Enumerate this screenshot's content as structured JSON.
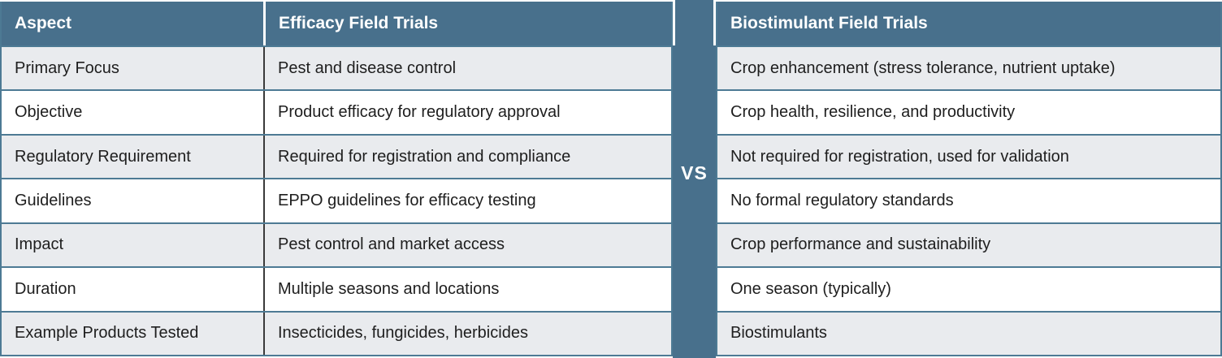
{
  "chart_data": {
    "type": "table",
    "columns": [
      "Aspect",
      "Efficacy Field Trials",
      "Biostimulant Field Trials"
    ],
    "rows": [
      [
        "Primary Focus",
        "Pest and disease control",
        "Crop enhancement (stress tolerance, nutrient uptake)"
      ],
      [
        "Objective",
        "Product efficacy for regulatory approval",
        "Crop health, resilience, and productivity"
      ],
      [
        "Regulatory Requirement",
        "Required for registration and compliance",
        "Not required for registration, used for validation"
      ],
      [
        "Guidelines",
        "EPPO guidelines for efficacy testing",
        "No formal regulatory standards"
      ],
      [
        "Impact",
        "Pest control and market access",
        "Crop performance and sustainability"
      ],
      [
        "Duration",
        "Multiple seasons and locations",
        "One season (typically)"
      ],
      [
        "Example Products Tested",
        "Insecticides, fungicides, herbicides",
        "Biostimulants"
      ]
    ],
    "layout": {
      "divider_position": "between column 2 and column 3",
      "row_striping": "alternating, first data row shaded"
    }
  },
  "divider_label": "VS",
  "colors": {
    "header_bg": "#48708c",
    "divider_band_bg": "#48708c",
    "border_line": "#4d7a94",
    "shaded_row_bg": "#e9ebee",
    "header_text": "#ffffff",
    "body_text": "#1e1e1e"
  }
}
